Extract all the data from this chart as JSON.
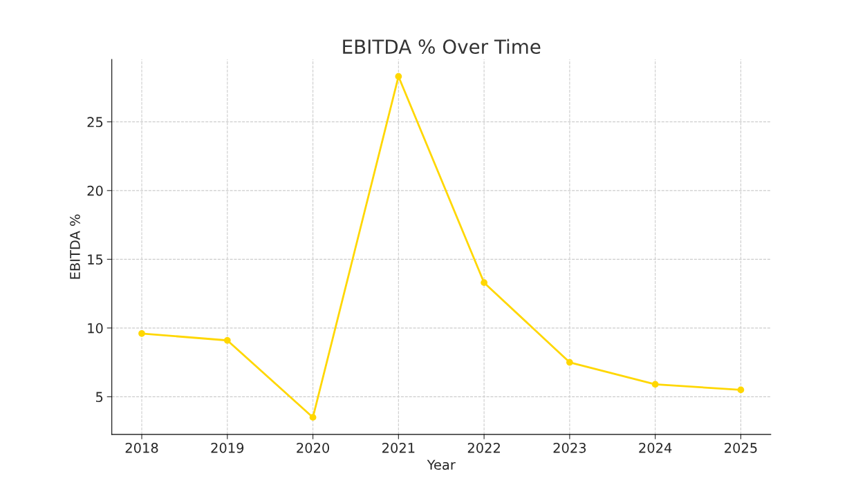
{
  "chart_data": {
    "type": "line",
    "title": "EBITDA % Over Time",
    "xlabel": "Year",
    "ylabel": "EBITDA %",
    "x": [
      2018,
      2019,
      2020,
      2021,
      2022,
      2023,
      2024,
      2025
    ],
    "series": [
      {
        "color": "#ffd700",
        "values": [
          9.6,
          9.1,
          3.5,
          28.3,
          13.3,
          7.5,
          5.9,
          5.5
        ]
      }
    ],
    "xlim": [
      2017.65,
      2025.35
    ],
    "xticks": [
      2018,
      2019,
      2020,
      2021,
      2022,
      2023,
      2024,
      2025
    ],
    "ylim": [
      2.26,
      29.54
    ],
    "yticks": [
      5,
      10,
      15,
      20,
      25
    ],
    "grid": true,
    "marker": "circle",
    "line_style": "solid"
  }
}
